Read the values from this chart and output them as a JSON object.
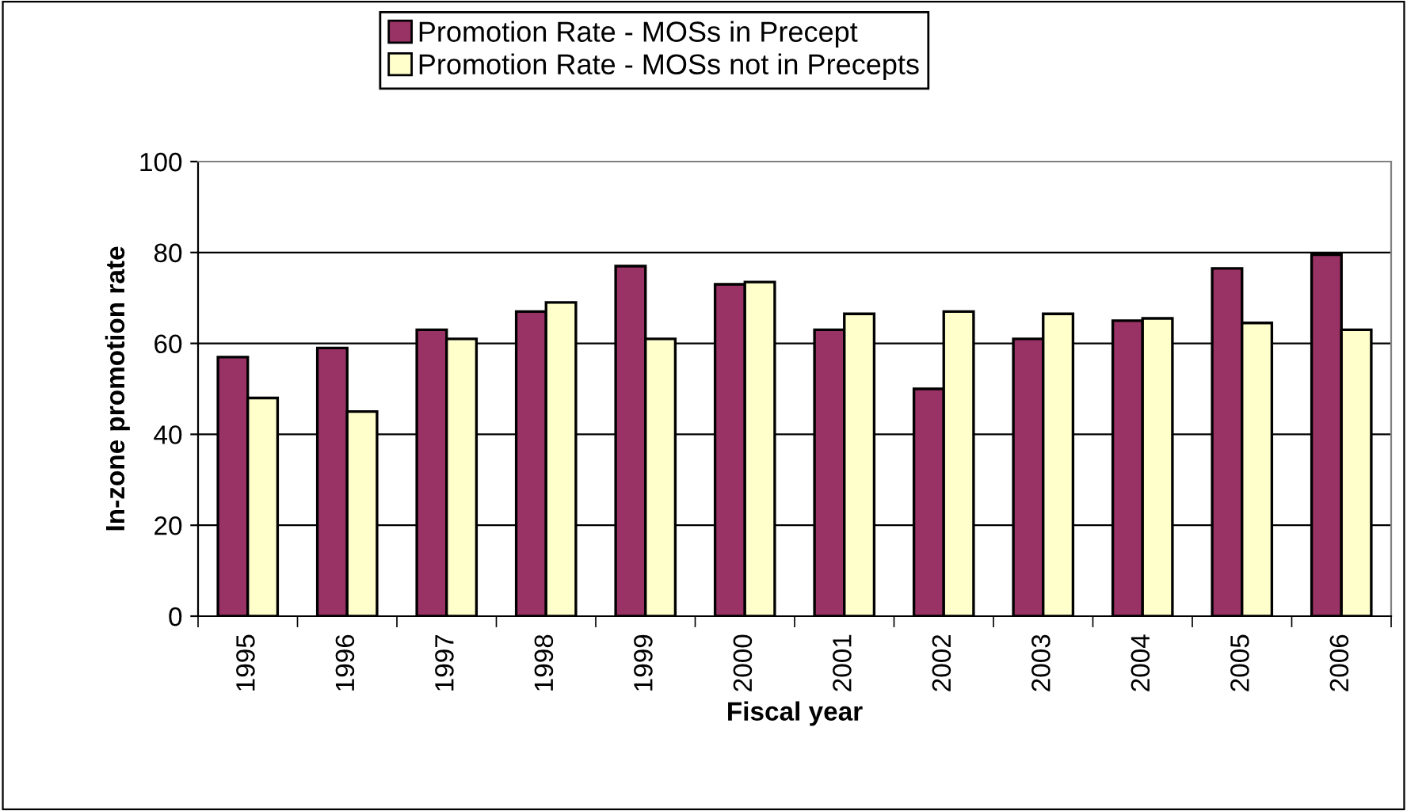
{
  "chart_data": {
    "type": "bar",
    "xlabel": "Fiscal year",
    "ylabel": "In-zone promotion rate",
    "categories": [
      "1995",
      "1996",
      "1997",
      "1998",
      "1999",
      "2000",
      "2001",
      "2002",
      "2003",
      "2004",
      "2005",
      "2006"
    ],
    "series": [
      {
        "name": "Promotion Rate - MOSs in Precept",
        "color": "#993366",
        "values": [
          57,
          59,
          63,
          67,
          77,
          73,
          63,
          50,
          61,
          65,
          76.5,
          79.5
        ]
      },
      {
        "name": "Promotion Rate - MOSs not in Precepts",
        "color": "#ffffcc",
        "values": [
          48,
          45,
          61,
          69,
          61,
          73.5,
          66.5,
          67,
          66.5,
          65.5,
          64.5,
          63
        ]
      }
    ],
    "ylim": [
      0,
      100
    ],
    "yticks": [
      0,
      20,
      40,
      60,
      80,
      100
    ],
    "grid": "y",
    "legend": "top"
  }
}
